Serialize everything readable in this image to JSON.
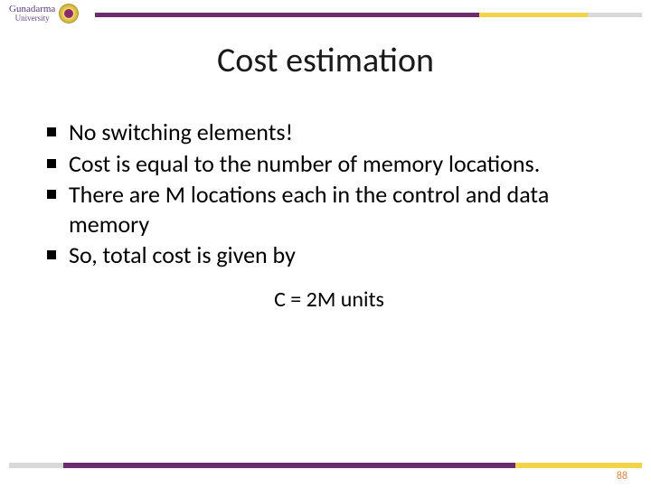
{
  "logo": {
    "name": "Gunadarma",
    "subtitle": "University"
  },
  "title": "Cost estimation",
  "bullets": [
    "No switching elements!",
    "Cost is equal to the number of memory locations.",
    "There are M locations each in the control and data memory",
    "So, total cost is given by"
  ],
  "formula": "C = 2M units",
  "page_number": "88",
  "colors": {
    "accent_purple": "#6a2c6e",
    "accent_yellow": "#f2d34a",
    "accent_gray": "#d9d9d9",
    "page_num_color": "#e28a4a",
    "text": "#000000",
    "background": "#ffffff"
  }
}
